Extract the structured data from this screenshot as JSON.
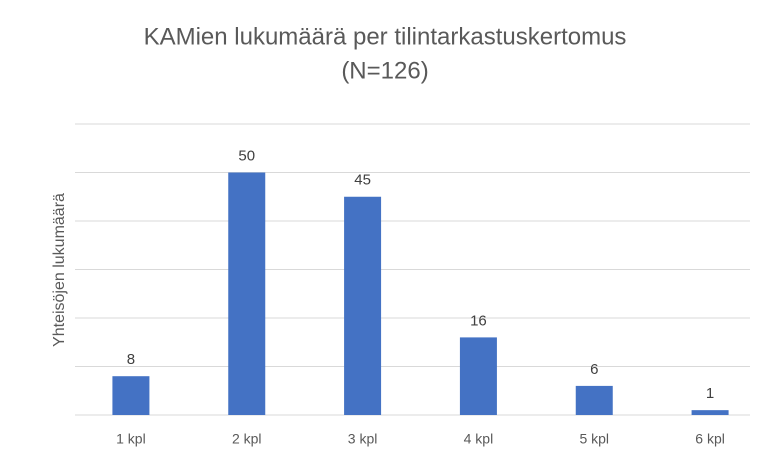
{
  "chart_data": {
    "type": "bar",
    "title": [
      "KAMien lukumäärä per tilintarkastuskertomus",
      "(N=126)"
    ],
    "y_axis_label": "Yhteisöjen lukumäärä",
    "categories": [
      "1 kpl",
      "2 kpl",
      "3 kpl",
      "4 kpl",
      "5 kpl",
      "6 kpl"
    ],
    "values": [
      8,
      50,
      45,
      16,
      6,
      1
    ],
    "color": "#4472c4",
    "ylim": [
      0,
      60
    ],
    "yticks": [
      0,
      10,
      20,
      30,
      40,
      50,
      60
    ],
    "ytick_labels_visible": false,
    "grid": true,
    "data_labels": true
  }
}
